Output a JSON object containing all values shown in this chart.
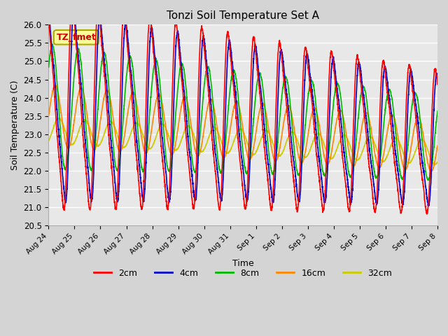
{
  "title": "Tonzi Soil Temperature Set A",
  "xlabel": "Time",
  "ylabel": "Soil Temperature (C)",
  "ylim": [
    20.5,
    26.0
  ],
  "legend_entries": [
    "2cm",
    "4cm",
    "8cm",
    "16cm",
    "32cm"
  ],
  "legend_colors": [
    "#ff0000",
    "#0000cc",
    "#00bb00",
    "#ff8800",
    "#cccc00"
  ],
  "annotation_text": "TZ_fmet",
  "annotation_box_color": "#ffff99",
  "annotation_text_color": "#cc0000",
  "annotation_border_color": "#aaaa00",
  "xtick_labels": [
    "Aug 24",
    "Aug 25",
    "Aug 26",
    "Aug 27",
    "Aug 28",
    "Aug 29",
    "Aug 30",
    "Aug 31",
    "Sep 1",
    "Sep 2",
    "Sep 3",
    "Sep 4",
    "Sep 5",
    "Sep 6",
    "Sep 7",
    "Sep 8"
  ],
  "n_points": 3000,
  "fig_facecolor": "#d4d4d4",
  "ax_facecolor": "#e8e8e8",
  "grid_color": "#ffffff"
}
